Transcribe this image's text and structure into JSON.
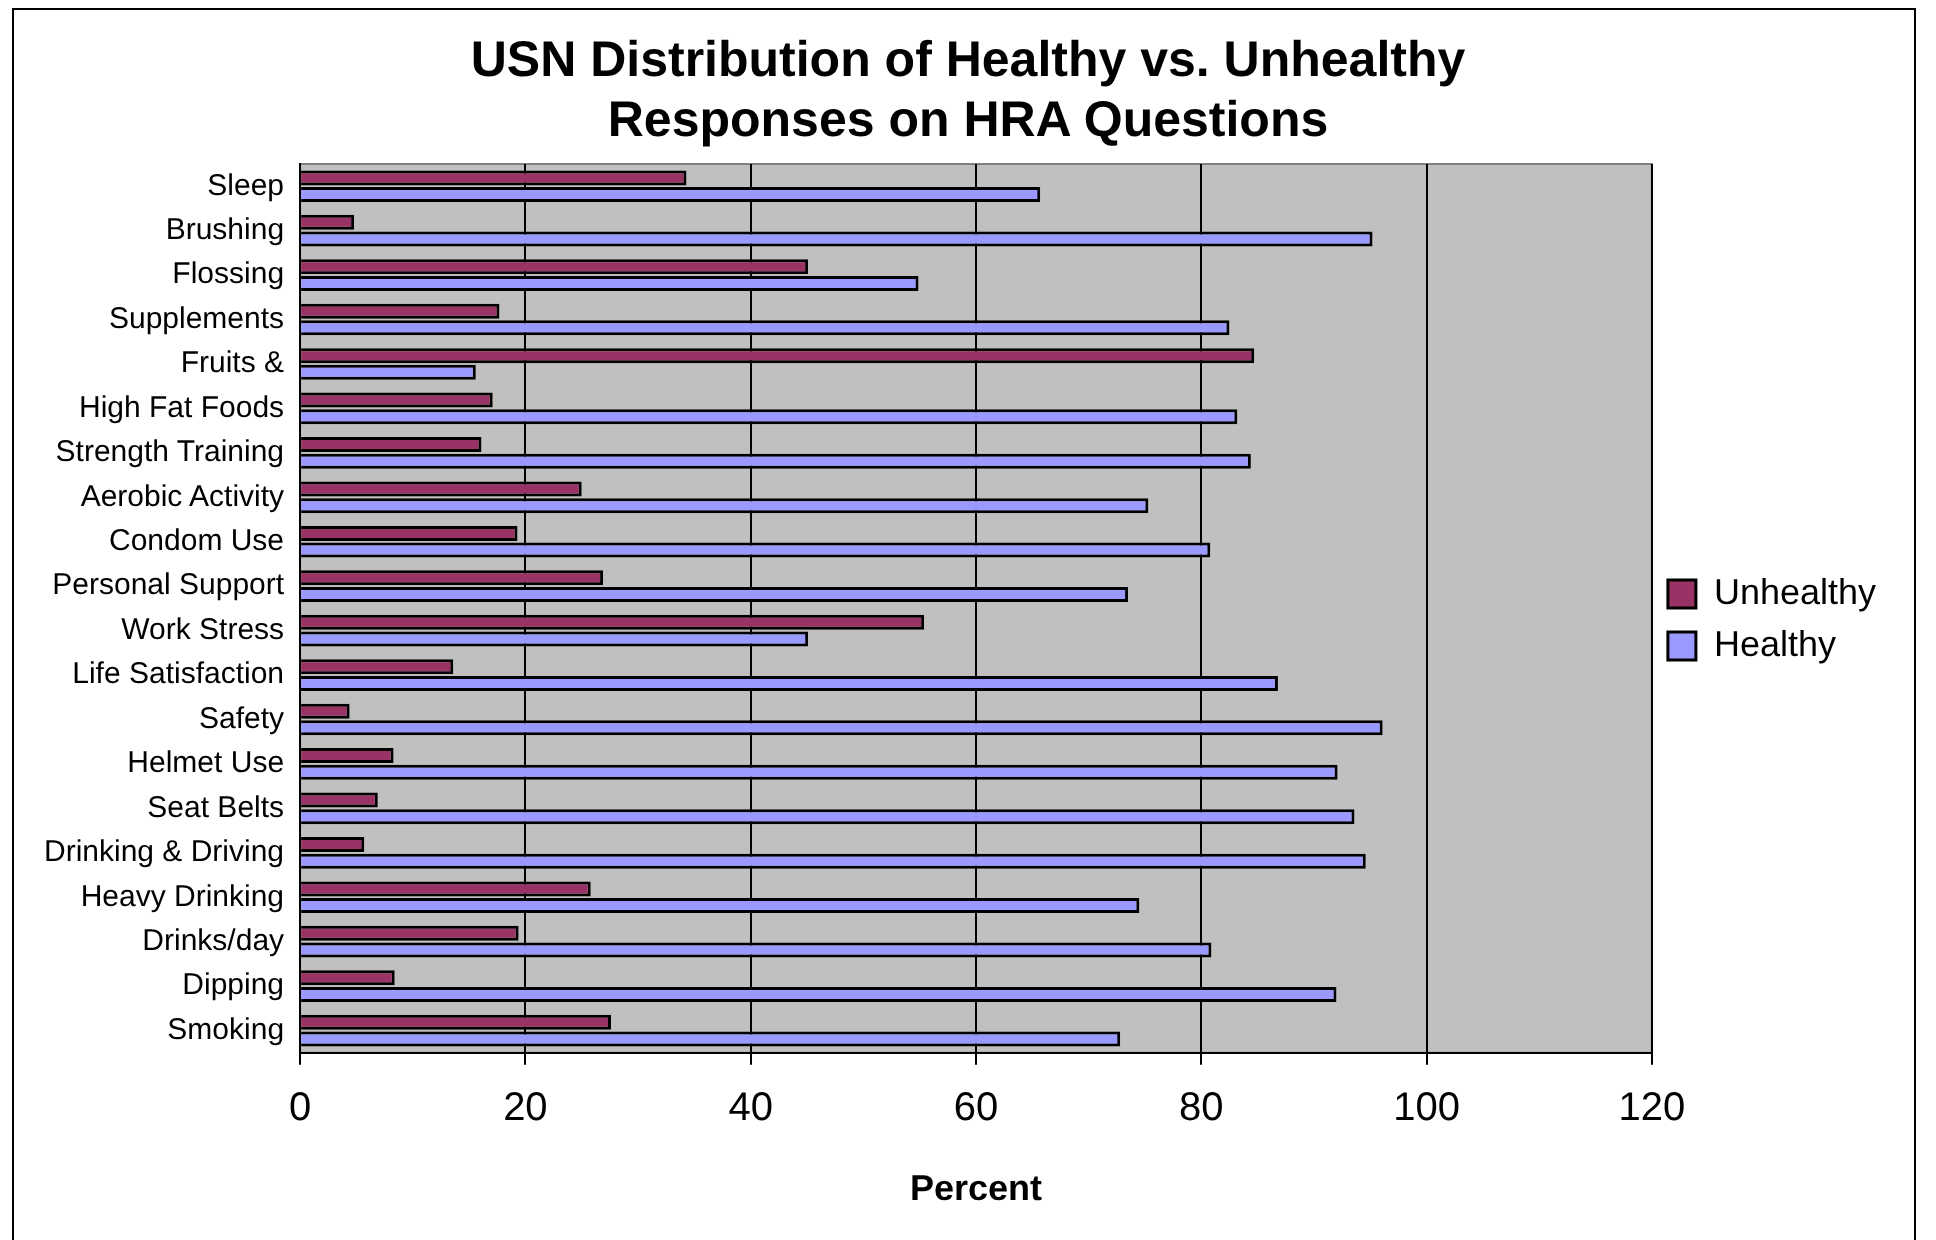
{
  "chart_data": {
    "type": "bar",
    "orientation": "horizontal",
    "title": "USN Distribution of Healthy vs. Unhealthy Responses on HRA Questions",
    "xlabel": "Percent",
    "categories": [
      "Sleep",
      "Brushing",
      "Flossing",
      "Supplements",
      "Fruits &",
      "High Fat Foods",
      "Strength Training",
      "Aerobic Activity",
      "Condom Use",
      "Personal Support",
      "Work Stress",
      "Life Satisfaction",
      "Safety",
      "Helmet Use",
      "Seat Belts",
      "Drinking & Driving",
      "Heavy Drinking",
      "Drinks/day",
      "Dipping",
      "Smoking"
    ],
    "series": [
      {
        "name": "Unhealthy",
        "color": "#993366",
        "values": [
          34.3,
          4.8,
          45.1,
          17.7,
          84.7,
          17.1,
          16.1,
          25.0,
          19.3,
          26.9,
          55.4,
          13.6,
          4.4,
          8.3,
          6.9,
          5.7,
          25.8,
          19.4,
          8.4,
          27.6
        ]
      },
      {
        "name": "Healthy",
        "color": "#9999ff",
        "values": [
          65.7,
          95.2,
          54.9,
          82.5,
          15.6,
          83.2,
          84.4,
          75.3,
          80.8,
          73.5,
          45.1,
          86.8,
          96.1,
          92.1,
          93.6,
          94.6,
          74.5,
          80.9,
          92.0,
          72.8
        ]
      }
    ],
    "xlim": [
      0,
      120
    ],
    "xticks": [
      0,
      20,
      40,
      60,
      80,
      100,
      120
    ],
    "grid": "x",
    "legend": "right"
  }
}
